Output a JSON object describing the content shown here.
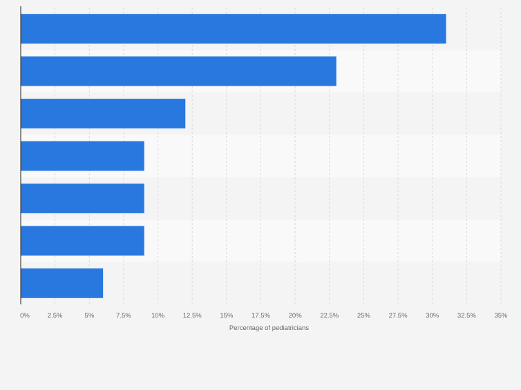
{
  "chart_data": {
    "type": "bar",
    "orientation": "horizontal",
    "categories": [
      "",
      "",
      "",
      "",
      "",
      "",
      ""
    ],
    "values": [
      31,
      23,
      12,
      9,
      9,
      9,
      6
    ],
    "title": "",
    "xlabel": "Percentage of pediatricians",
    "ylabel": "",
    "xlim": [
      0,
      35
    ],
    "xticks": [
      "0%",
      "2.5%",
      "5%",
      "7.5%",
      "10%",
      "12.5%",
      "15%",
      "17.5%",
      "20%",
      "22.5%",
      "25%",
      "27.5%",
      "30%",
      "32.5%",
      "35%"
    ],
    "grid": true,
    "legend": "none",
    "colors": {
      "bar": "#2878df",
      "band_light": "#f9f9f9",
      "band_dark": "#f4f4f4",
      "grid": "#dadada",
      "axis": "#222222",
      "text": "#666666"
    }
  }
}
